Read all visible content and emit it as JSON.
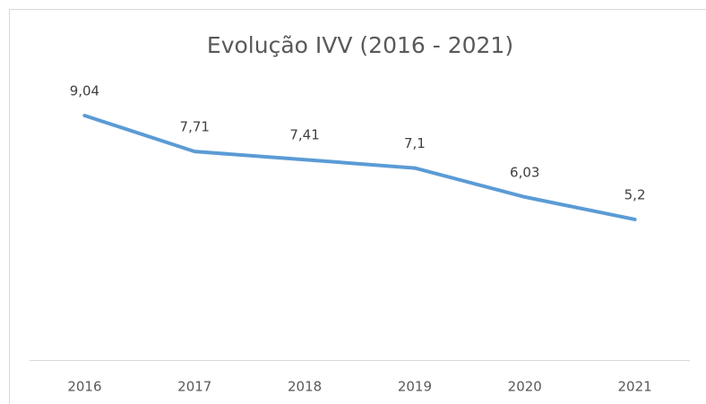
{
  "chart_data": {
    "type": "line",
    "title": "Evolução IVV (2016 - 2021)",
    "categories": [
      "2016",
      "2017",
      "2018",
      "2019",
      "2020",
      "2021"
    ],
    "values": [
      9.04,
      7.71,
      7.41,
      7.1,
      6.03,
      5.2
    ],
    "value_labels": [
      "9,04",
      "7,71",
      "7,41",
      "7,1",
      "6,03",
      "5,2"
    ],
    "color": "#5b9bd5",
    "ylim": [
      0,
      10
    ]
  }
}
